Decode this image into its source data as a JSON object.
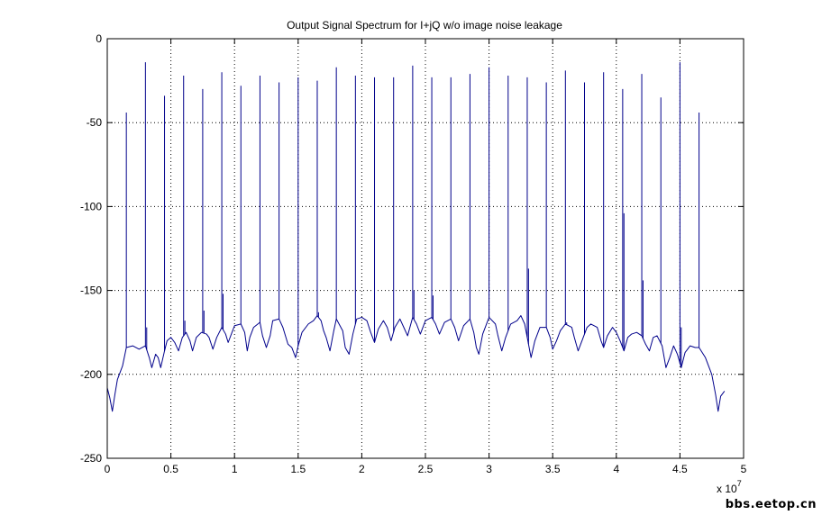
{
  "chart_data": {
    "type": "line",
    "title": "Output Signal Spectrum for I+jQ w/o image noise leakage",
    "xlabel": "",
    "ylabel": "",
    "x_scale_note": "x 10",
    "x_scale_exponent": "7",
    "xlim": [
      0,
      5
    ],
    "ylim": [
      -250,
      0
    ],
    "xticks": [
      0,
      0.5,
      1,
      1.5,
      2,
      2.5,
      3,
      3.5,
      4,
      4.5,
      5
    ],
    "xtick_labels": [
      "0",
      "0.5",
      "1",
      "1.5",
      "2",
      "2.5",
      "3",
      "3.5",
      "4",
      "4.5",
      "5"
    ],
    "yticks": [
      0,
      -50,
      -100,
      -150,
      -200,
      -250
    ],
    "ytick_labels": [
      "0",
      "-50",
      "-100",
      "-150",
      "-200",
      "-250"
    ],
    "grid": true,
    "legend": "none",
    "line_color": "#00008b",
    "series": [
      {
        "floor": [
          [
            0,
            -208
          ],
          [
            0.02,
            -214
          ],
          [
            0.04,
            -222
          ],
          [
            0.06,
            -212
          ],
          [
            0.08,
            -203
          ],
          [
            0.12,
            -195
          ],
          [
            0.15,
            -184
          ],
          [
            0.2,
            -183
          ],
          [
            0.25,
            -185
          ],
          [
            0.3,
            -183
          ],
          [
            0.33,
            -190
          ],
          [
            0.35,
            -196
          ],
          [
            0.38,
            -188
          ],
          [
            0.4,
            -190
          ],
          [
            0.42,
            -196
          ],
          [
            0.45,
            -186
          ],
          [
            0.47,
            -180
          ],
          [
            0.5,
            -178
          ],
          [
            0.53,
            -181
          ],
          [
            0.56,
            -186
          ],
          [
            0.59,
            -178
          ],
          [
            0.62,
            -175
          ],
          [
            0.65,
            -180
          ],
          [
            0.67,
            -186
          ],
          [
            0.7,
            -178
          ],
          [
            0.74,
            -175
          ],
          [
            0.78,
            -176
          ],
          [
            0.8,
            -178
          ],
          [
            0.83,
            -185
          ],
          [
            0.86,
            -178
          ],
          [
            0.9,
            -172
          ],
          [
            0.93,
            -176
          ],
          [
            0.95,
            -181
          ],
          [
            0.98,
            -175
          ],
          [
            1.0,
            -171
          ],
          [
            1.05,
            -170
          ],
          [
            1.08,
            -175
          ],
          [
            1.1,
            -186
          ],
          [
            1.12,
            -178
          ],
          [
            1.15,
            -172
          ],
          [
            1.2,
            -169
          ],
          [
            1.22,
            -177
          ],
          [
            1.25,
            -184
          ],
          [
            1.28,
            -177
          ],
          [
            1.3,
            -168
          ],
          [
            1.35,
            -167
          ],
          [
            1.38,
            -172
          ],
          [
            1.42,
            -182
          ],
          [
            1.45,
            -184
          ],
          [
            1.48,
            -190
          ],
          [
            1.5,
            -183
          ],
          [
            1.53,
            -175
          ],
          [
            1.58,
            -170
          ],
          [
            1.62,
            -168
          ],
          [
            1.65,
            -165
          ],
          [
            1.68,
            -168
          ],
          [
            1.7,
            -174
          ],
          [
            1.72,
            -178
          ],
          [
            1.75,
            -186
          ],
          [
            1.78,
            -174
          ],
          [
            1.8,
            -167
          ],
          [
            1.85,
            -174
          ],
          [
            1.87,
            -184
          ],
          [
            1.9,
            -188
          ],
          [
            1.93,
            -176
          ],
          [
            1.96,
            -167
          ],
          [
            2.0,
            -166
          ],
          [
            2.04,
            -168
          ],
          [
            2.07,
            -175
          ],
          [
            2.1,
            -181
          ],
          [
            2.13,
            -173
          ],
          [
            2.17,
            -168
          ],
          [
            2.2,
            -172
          ],
          [
            2.23,
            -180
          ],
          [
            2.26,
            -172
          ],
          [
            2.3,
            -167
          ],
          [
            2.33,
            -172
          ],
          [
            2.36,
            -177
          ],
          [
            2.4,
            -166
          ],
          [
            2.43,
            -170
          ],
          [
            2.46,
            -176
          ],
          [
            2.5,
            -168
          ],
          [
            2.55,
            -166
          ],
          [
            2.58,
            -170
          ],
          [
            2.61,
            -176
          ],
          [
            2.65,
            -169
          ],
          [
            2.7,
            -167
          ],
          [
            2.73,
            -172
          ],
          [
            2.76,
            -180
          ],
          [
            2.8,
            -171
          ],
          [
            2.85,
            -167
          ],
          [
            2.88,
            -175
          ],
          [
            2.9,
            -184
          ],
          [
            2.92,
            -188
          ],
          [
            2.95,
            -176
          ],
          [
            3.0,
            -166
          ],
          [
            3.05,
            -170
          ],
          [
            3.07,
            -177
          ],
          [
            3.1,
            -186
          ],
          [
            3.13,
            -178
          ],
          [
            3.17,
            -170
          ],
          [
            3.22,
            -168
          ],
          [
            3.25,
            -165
          ],
          [
            3.28,
            -170
          ],
          [
            3.3,
            -178
          ],
          [
            3.33,
            -190
          ],
          [
            3.36,
            -180
          ],
          [
            3.4,
            -172
          ],
          [
            3.45,
            -172
          ],
          [
            3.48,
            -178
          ],
          [
            3.5,
            -185
          ],
          [
            3.53,
            -180
          ],
          [
            3.56,
            -174
          ],
          [
            3.6,
            -170
          ],
          [
            3.65,
            -172
          ],
          [
            3.67,
            -178
          ],
          [
            3.7,
            -186
          ],
          [
            3.73,
            -180
          ],
          [
            3.77,
            -172
          ],
          [
            3.8,
            -170
          ],
          [
            3.85,
            -172
          ],
          [
            3.88,
            -180
          ],
          [
            3.9,
            -184
          ],
          [
            3.93,
            -177
          ],
          [
            3.97,
            -172
          ],
          [
            4.0,
            -175
          ],
          [
            4.03,
            -180
          ],
          [
            4.06,
            -186
          ],
          [
            4.09,
            -178
          ],
          [
            4.12,
            -176
          ],
          [
            4.16,
            -175
          ],
          [
            4.2,
            -177
          ],
          [
            4.23,
            -182
          ],
          [
            4.26,
            -186
          ],
          [
            4.29,
            -178
          ],
          [
            4.32,
            -177
          ],
          [
            4.36,
            -183
          ],
          [
            4.39,
            -196
          ],
          [
            4.42,
            -190
          ],
          [
            4.45,
            -183
          ],
          [
            4.48,
            -188
          ],
          [
            4.51,
            -196
          ],
          [
            4.54,
            -187
          ],
          [
            4.58,
            -183
          ],
          [
            4.62,
            -184
          ],
          [
            4.65,
            -184
          ],
          [
            4.7,
            -190
          ],
          [
            4.75,
            -200
          ],
          [
            4.78,
            -212
          ],
          [
            4.8,
            -222
          ],
          [
            4.82,
            -213
          ],
          [
            4.85,
            -210
          ]
        ],
        "spikes": [
          [
            0.15,
            -44
          ],
          [
            0.3,
            -14
          ],
          [
            0.45,
            -34
          ],
          [
            0.6,
            -22
          ],
          [
            0.75,
            -30
          ],
          [
            0.9,
            -20
          ],
          [
            1.05,
            -28
          ],
          [
            1.2,
            -22
          ],
          [
            1.35,
            -26
          ],
          [
            1.5,
            -23
          ],
          [
            1.65,
            -25
          ],
          [
            1.8,
            -17
          ],
          [
            1.95,
            -22
          ],
          [
            2.1,
            -23
          ],
          [
            2.25,
            -23
          ],
          [
            2.4,
            -16
          ],
          [
            2.55,
            -23
          ],
          [
            2.7,
            -23
          ],
          [
            2.85,
            -21
          ],
          [
            3.0,
            -17
          ],
          [
            3.15,
            -22
          ],
          [
            3.3,
            -23
          ],
          [
            3.45,
            -26
          ],
          [
            3.6,
            -19
          ],
          [
            3.75,
            -26
          ],
          [
            3.9,
            -20
          ],
          [
            4.05,
            -30
          ],
          [
            4.2,
            -21
          ],
          [
            4.35,
            -35
          ],
          [
            4.5,
            -14
          ],
          [
            4.65,
            -44
          ]
        ],
        "small_spikes": [
          [
            0.31,
            -172
          ],
          [
            0.61,
            -168
          ],
          [
            0.76,
            -162
          ],
          [
            0.91,
            -152
          ],
          [
            1.66,
            -163
          ],
          [
            2.41,
            -150
          ],
          [
            2.56,
            -153
          ],
          [
            3.31,
            -137
          ],
          [
            3.61,
            -169
          ],
          [
            4.06,
            -104
          ],
          [
            4.21,
            -144
          ],
          [
            4.51,
            -172
          ]
        ]
      }
    ]
  },
  "watermark": "bbs.eetop.cn"
}
